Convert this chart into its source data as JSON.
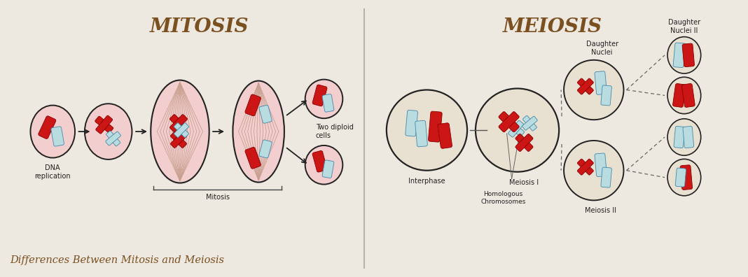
{
  "background_color": "#ede8e0",
  "title_mitosis": "MITOSIS",
  "title_meiosis": "MEIOSIS",
  "title_color": "#7a5020",
  "title_fontsize": 20,
  "footer_text": "Differences Between Mitosis and Meiosis",
  "footer_color": "#7a5020",
  "footer_fontsize": 10.5,
  "red_color": "#cc1515",
  "blue_color": "#b8dce0",
  "cell_fill_pink": "#f2cece",
  "cell_fill_light": "#e8e0d0",
  "cell_edge_dark": "#222222",
  "cell_edge_gray": "#555555",
  "spindle_color": "#c8a090",
  "spindle_lw": 0.6,
  "label_color": "#222222",
  "label_fontsize": 7.0
}
